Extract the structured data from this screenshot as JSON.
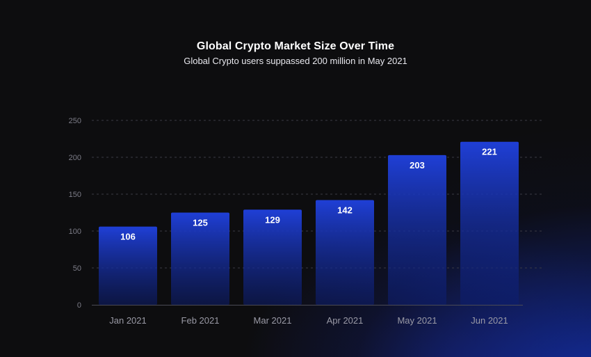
{
  "chart_data": {
    "type": "bar",
    "title": "Global Crypto Market Size Over Time",
    "subtitle": "Global Crypto users suppassed 200 million in May 2021",
    "xlabel": "",
    "ylabel": "",
    "categories": [
      "Jan 2021",
      "Feb 2021",
      "Mar 2021",
      "Apr 2021",
      "May 2021",
      "Jun 2021"
    ],
    "values": [
      106,
      125,
      129,
      142,
      203,
      221
    ],
    "yticks": [
      0,
      50,
      100,
      150,
      200,
      250
    ],
    "ylim": [
      0,
      250
    ],
    "grid": "horizontal-dashed",
    "legend": "none",
    "colors": {
      "bar_top": "#1f3fd6",
      "bar_bottom": "#0c1d6e",
      "grid": "#3a3a44",
      "axis": "#4a4a55"
    }
  }
}
